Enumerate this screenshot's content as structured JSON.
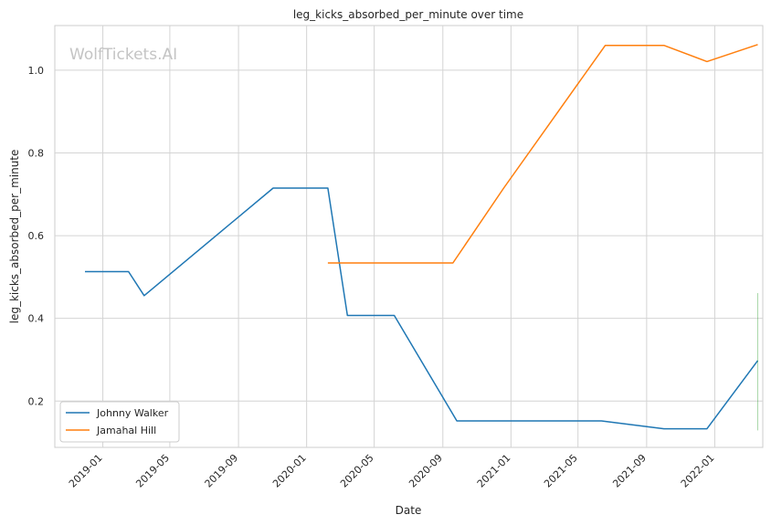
{
  "chart_data": {
    "type": "line",
    "title": "leg_kicks_absorbed_per_minute over time",
    "xlabel": "Date",
    "ylabel": "leg_kicks_absorbed_per_minute",
    "watermark": "WolfTickets.AI",
    "x_ticks": [
      "2019-01",
      "2019-05",
      "2019-09",
      "2020-01",
      "2020-05",
      "2020-09",
      "2021-01",
      "2021-05",
      "2021-09",
      "2022-01"
    ],
    "y_ticks": [
      "0.2",
      "0.4",
      "0.6",
      "0.8",
      "1.0"
    ],
    "xlim": [
      "2018-10-07",
      "2022-03-28"
    ],
    "ylim": [
      0.088,
      1.108
    ],
    "grid": true,
    "legend_position": "lower-left",
    "series": [
      {
        "name": "Johnny Walker",
        "color": "#1f77b4",
        "points": [
          {
            "x": "2018-11-30",
            "y": 0.513
          },
          {
            "x": "2019-02-16",
            "y": 0.513
          },
          {
            "x": "2019-03-16",
            "y": 0.455
          },
          {
            "x": "2019-11-02",
            "y": 0.715
          },
          {
            "x": "2020-02-08",
            "y": 0.715
          },
          {
            "x": "2020-03-14",
            "y": 0.407
          },
          {
            "x": "2020-06-06",
            "y": 0.407
          },
          {
            "x": "2020-09-26",
            "y": 0.152
          },
          {
            "x": "2021-06-12",
            "y": 0.152
          },
          {
            "x": "2021-10-02",
            "y": 0.133
          },
          {
            "x": "2021-12-18",
            "y": 0.133
          },
          {
            "x": "2022-03-19",
            "y": 0.298
          }
        ]
      },
      {
        "name": "Jamahal Hill",
        "color": "#ff7f0e",
        "points": [
          {
            "x": "2020-02-08",
            "y": 0.534
          },
          {
            "x": "2020-09-19",
            "y": 0.534
          },
          {
            "x": "2020-12-19",
            "y": 0.715
          },
          {
            "x": "2021-06-19",
            "y": 1.06
          },
          {
            "x": "2021-10-02",
            "y": 1.06
          },
          {
            "x": "2021-12-18",
            "y": 1.021
          },
          {
            "x": "2022-03-19",
            "y": 1.062
          }
        ]
      }
    ],
    "annotation_line": {
      "x": "2022-03-19",
      "y_range": [
        0.129,
        0.461
      ],
      "color": "#2ca02c"
    }
  }
}
